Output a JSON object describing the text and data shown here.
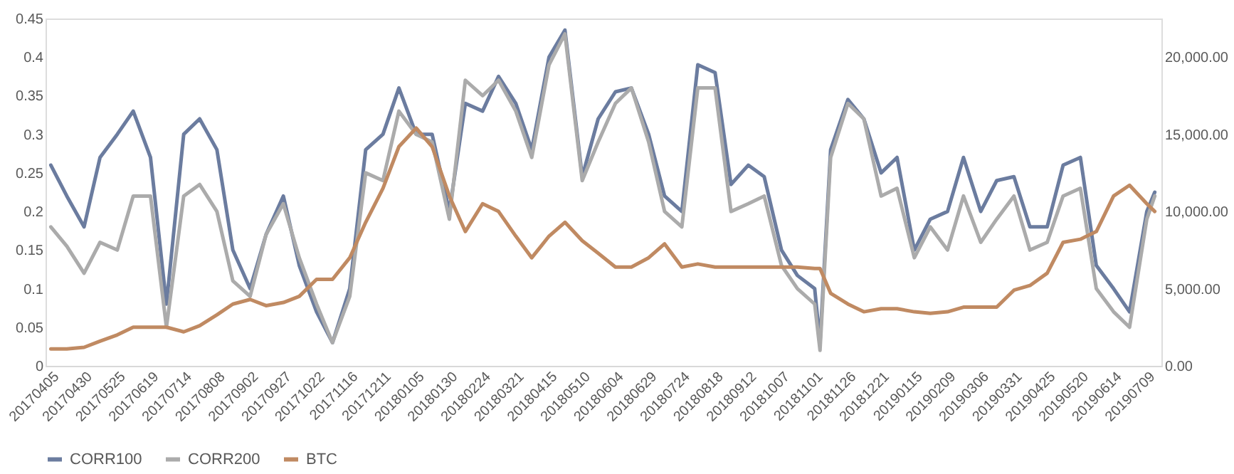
{
  "chart_data": {
    "type": "line",
    "x": [
      "2017-04-05",
      "2017-04-17",
      "2017-04-30",
      "2017-05-12",
      "2017-05-25",
      "2017-06-06",
      "2017-06-19",
      "2017-07-01",
      "2017-07-14",
      "2017-07-26",
      "2017-08-08",
      "2017-08-20",
      "2017-09-02",
      "2017-09-14",
      "2017-09-27",
      "2017-10-09",
      "2017-10-22",
      "2017-11-03",
      "2017-11-16",
      "2017-11-28",
      "2017-12-11",
      "2017-12-23",
      "2018-01-05",
      "2018-01-17",
      "2018-01-30",
      "2018-02-11",
      "2018-02-24",
      "2018-03-08",
      "2018-03-21",
      "2018-04-02",
      "2018-04-15",
      "2018-04-27",
      "2018-05-10",
      "2018-05-22",
      "2018-06-04",
      "2018-06-16",
      "2018-06-29",
      "2018-07-11",
      "2018-07-24",
      "2018-08-05",
      "2018-08-18",
      "2018-08-30",
      "2018-09-12",
      "2018-09-24",
      "2018-10-07",
      "2018-10-19",
      "2018-11-01",
      "2018-11-05",
      "2018-11-13",
      "2018-11-26",
      "2018-12-08",
      "2018-12-21",
      "2019-01-02",
      "2019-01-15",
      "2019-01-27",
      "2019-02-09",
      "2019-02-21",
      "2019-03-06",
      "2019-03-18",
      "2019-03-31",
      "2019-04-12",
      "2019-04-25",
      "2019-05-07",
      "2019-05-20",
      "2019-06-01",
      "2019-06-14",
      "2019-06-26",
      "2019-07-09",
      "2019-07-15"
    ],
    "series": [
      {
        "name": "CORR100",
        "color": "#6b7c9f",
        "values": [
          0.26,
          0.22,
          0.18,
          0.27,
          0.3,
          0.33,
          0.27,
          0.08,
          0.3,
          0.32,
          0.28,
          0.15,
          0.1,
          0.17,
          0.22,
          0.13,
          0.07,
          0.03,
          0.1,
          0.28,
          0.3,
          0.36,
          0.3,
          0.3,
          0.2,
          0.34,
          0.33,
          0.375,
          0.34,
          0.28,
          0.4,
          0.435,
          0.245,
          0.32,
          0.355,
          0.36,
          0.3,
          0.22,
          0.2,
          0.39,
          0.38,
          0.235,
          0.26,
          0.245,
          0.15,
          0.117,
          0.1,
          0.03,
          0.28,
          0.345,
          0.32,
          0.25,
          0.27,
          0.15,
          0.19,
          0.2,
          0.27,
          0.2,
          0.24,
          0.245,
          0.18,
          0.18,
          0.26,
          0.27,
          0.13,
          0.1,
          0.07,
          0.2,
          0.225
        ]
      },
      {
        "name": "CORR200",
        "color": "#ababab",
        "values": [
          0.18,
          0.155,
          0.12,
          0.16,
          0.15,
          0.22,
          0.22,
          0.05,
          0.22,
          0.235,
          0.2,
          0.11,
          0.09,
          0.17,
          0.21,
          0.14,
          0.08,
          0.03,
          0.09,
          0.25,
          0.24,
          0.33,
          0.3,
          0.29,
          0.19,
          0.37,
          0.35,
          0.37,
          0.33,
          0.27,
          0.39,
          0.43,
          0.24,
          0.29,
          0.34,
          0.36,
          0.29,
          0.2,
          0.18,
          0.36,
          0.36,
          0.2,
          0.21,
          0.22,
          0.13,
          0.1,
          0.08,
          0.02,
          0.27,
          0.34,
          0.32,
          0.22,
          0.23,
          0.14,
          0.18,
          0.15,
          0.22,
          0.16,
          0.19,
          0.22,
          0.15,
          0.16,
          0.22,
          0.23,
          0.1,
          0.07,
          0.05,
          0.19,
          0.22
        ]
      },
      {
        "name": "BTC",
        "color": "#c08a62",
        "axis": "y2",
        "values": [
          1100,
          1100,
          1200,
          1600,
          2000,
          2500,
          2500,
          2500,
          2200,
          2600,
          3300,
          4000,
          4300,
          3900,
          4100,
          4500,
          5600,
          5600,
          7000,
          9300,
          11500,
          14200,
          15400,
          14200,
          11000,
          8700,
          10500,
          10000,
          8400,
          7000,
          8400,
          9300,
          8100,
          7300,
          6400,
          6400,
          7000,
          7900,
          6400,
          6600,
          6400,
          6400,
          6400,
          6400,
          6400,
          6400,
          6300,
          6300,
          4700,
          4000,
          3500,
          3700,
          3700,
          3500,
          3400,
          3500,
          3800,
          3800,
          3800,
          4900,
          5200,
          6000,
          8000,
          8200,
          8700,
          11000,
          11700,
          10500,
          10000
        ]
      }
    ],
    "xlim": [
      "2017-04-01",
      "2019-07-20"
    ],
    "xticks": [
      {
        "value": "2017-04-05",
        "label": "20170405"
      },
      {
        "value": "2017-04-30",
        "label": "20170430"
      },
      {
        "value": "2017-05-25",
        "label": "20170525"
      },
      {
        "value": "2017-06-19",
        "label": "20170619"
      },
      {
        "value": "2017-07-14",
        "label": "20170714"
      },
      {
        "value": "2017-08-08",
        "label": "20170808"
      },
      {
        "value": "2017-09-02",
        "label": "20170902"
      },
      {
        "value": "2017-09-27",
        "label": "20170927"
      },
      {
        "value": "2017-10-22",
        "label": "20171022"
      },
      {
        "value": "2017-11-16",
        "label": "20171116"
      },
      {
        "value": "2017-12-11",
        "label": "20171211"
      },
      {
        "value": "2018-01-05",
        "label": "20180105"
      },
      {
        "value": "2018-01-30",
        "label": "20180130"
      },
      {
        "value": "2018-02-24",
        "label": "20180224"
      },
      {
        "value": "2018-03-21",
        "label": "20180321"
      },
      {
        "value": "2018-04-15",
        "label": "20180415"
      },
      {
        "value": "2018-05-10",
        "label": "20180510"
      },
      {
        "value": "2018-06-04",
        "label": "20180604"
      },
      {
        "value": "2018-06-29",
        "label": "20180629"
      },
      {
        "value": "2018-07-24",
        "label": "20180724"
      },
      {
        "value": "2018-08-18",
        "label": "20180818"
      },
      {
        "value": "2018-09-12",
        "label": "20180912"
      },
      {
        "value": "2018-10-07",
        "label": "20181007"
      },
      {
        "value": "2018-11-01",
        "label": "20181101"
      },
      {
        "value": "2018-11-26",
        "label": "20181126"
      },
      {
        "value": "2018-12-21",
        "label": "20181221"
      },
      {
        "value": "2019-01-15",
        "label": "20190115"
      },
      {
        "value": "2019-02-09",
        "label": "20190209"
      },
      {
        "value": "2019-03-06",
        "label": "20190306"
      },
      {
        "value": "2019-03-31",
        "label": "20190331"
      },
      {
        "value": "2019-04-25",
        "label": "20190425"
      },
      {
        "value": "2019-05-20",
        "label": "20190520"
      },
      {
        "value": "2019-06-14",
        "label": "20190614"
      },
      {
        "value": "2019-07-09",
        "label": "20190709"
      }
    ],
    "ylim": [
      0,
      0.45
    ],
    "yticks": [
      0,
      0.05,
      0.1,
      0.15,
      0.2,
      0.25,
      0.3,
      0.35,
      0.4,
      0.45
    ],
    "y2lim": [
      0,
      22500
    ],
    "y2ticks": [
      {
        "value": 0,
        "label": "0.00"
      },
      {
        "value": 5000,
        "label": "5,000.00"
      },
      {
        "value": 10000,
        "label": "10,000.00"
      },
      {
        "value": 15000,
        "label": "15,000.00"
      },
      {
        "value": 20000,
        "label": "20,000.00"
      }
    ],
    "grid": false,
    "legend": "bottom",
    "marker": "none",
    "line_style": "solid"
  }
}
